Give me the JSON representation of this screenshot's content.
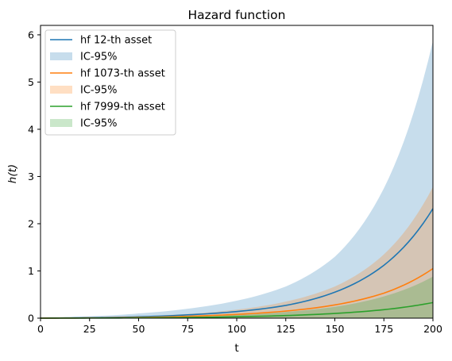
{
  "chart_data": {
    "type": "line",
    "title": "Hazard function",
    "xlabel": "t",
    "ylabel": "h(t)",
    "xlim": [
      0,
      200
    ],
    "ylim": [
      0,
      6.2
    ],
    "xticks": [
      0,
      25,
      50,
      75,
      100,
      125,
      150,
      175,
      200
    ],
    "yticks": [
      0,
      1,
      2,
      3,
      4,
      5,
      6
    ],
    "grid": false,
    "legend_position": "top-left",
    "x": [
      0,
      25,
      50,
      75,
      100,
      125,
      150,
      175,
      200
    ],
    "series": [
      {
        "name": "hf 12-th asset",
        "color": "#1f77b4",
        "values": [
          0.0,
          0.01,
          0.03,
          0.07,
          0.14,
          0.27,
          0.55,
          1.12,
          2.32
        ]
      },
      {
        "name": "hf 1073-th asset",
        "color": "#ff7f0e",
        "values": [
          0.0,
          0.005,
          0.015,
          0.04,
          0.08,
          0.15,
          0.28,
          0.53,
          1.05
        ]
      },
      {
        "name": "hf 7999-th asset",
        "color": "#2ca02c",
        "values": [
          0.0,
          0.002,
          0.006,
          0.015,
          0.03,
          0.055,
          0.1,
          0.18,
          0.33
        ]
      }
    ],
    "bands": [
      {
        "name": "IC-95%",
        "color": "#1f77b4",
        "lower": [
          0.0,
          0.0,
          0.0,
          0.0,
          0.0,
          0.0,
          0.0,
          0.0,
          0.0
        ],
        "upper": [
          0.0,
          0.04,
          0.1,
          0.2,
          0.37,
          0.67,
          1.3,
          2.75,
          5.87
        ]
      },
      {
        "name": "IC-95%",
        "color": "#ff7f0e",
        "lower": [
          0.0,
          0.0,
          0.0,
          0.0,
          0.0,
          0.0,
          0.0,
          0.0,
          0.0
        ],
        "upper": [
          0.0,
          0.015,
          0.04,
          0.09,
          0.18,
          0.35,
          0.67,
          1.35,
          2.78
        ]
      },
      {
        "name": "IC-95%",
        "color": "#2ca02c",
        "lower": [
          0.0,
          0.0,
          0.0,
          0.0,
          0.0,
          0.0,
          0.0,
          0.0,
          0.0
        ],
        "upper": [
          0.0,
          0.005,
          0.015,
          0.03,
          0.07,
          0.13,
          0.24,
          0.46,
          0.88
        ]
      }
    ],
    "legend": [
      {
        "label": "hf 12-th asset",
        "kind": "line",
        "color": "#1f77b4"
      },
      {
        "label": "IC-95%",
        "kind": "patch",
        "color": "#1f77b4"
      },
      {
        "label": "hf 1073-th asset",
        "kind": "line",
        "color": "#ff7f0e"
      },
      {
        "label": "IC-95%",
        "kind": "patch",
        "color": "#ff7f0e"
      },
      {
        "label": "hf 7999-th asset",
        "kind": "line",
        "color": "#2ca02c"
      },
      {
        "label": "IC-95%",
        "kind": "patch",
        "color": "#2ca02c"
      }
    ]
  }
}
